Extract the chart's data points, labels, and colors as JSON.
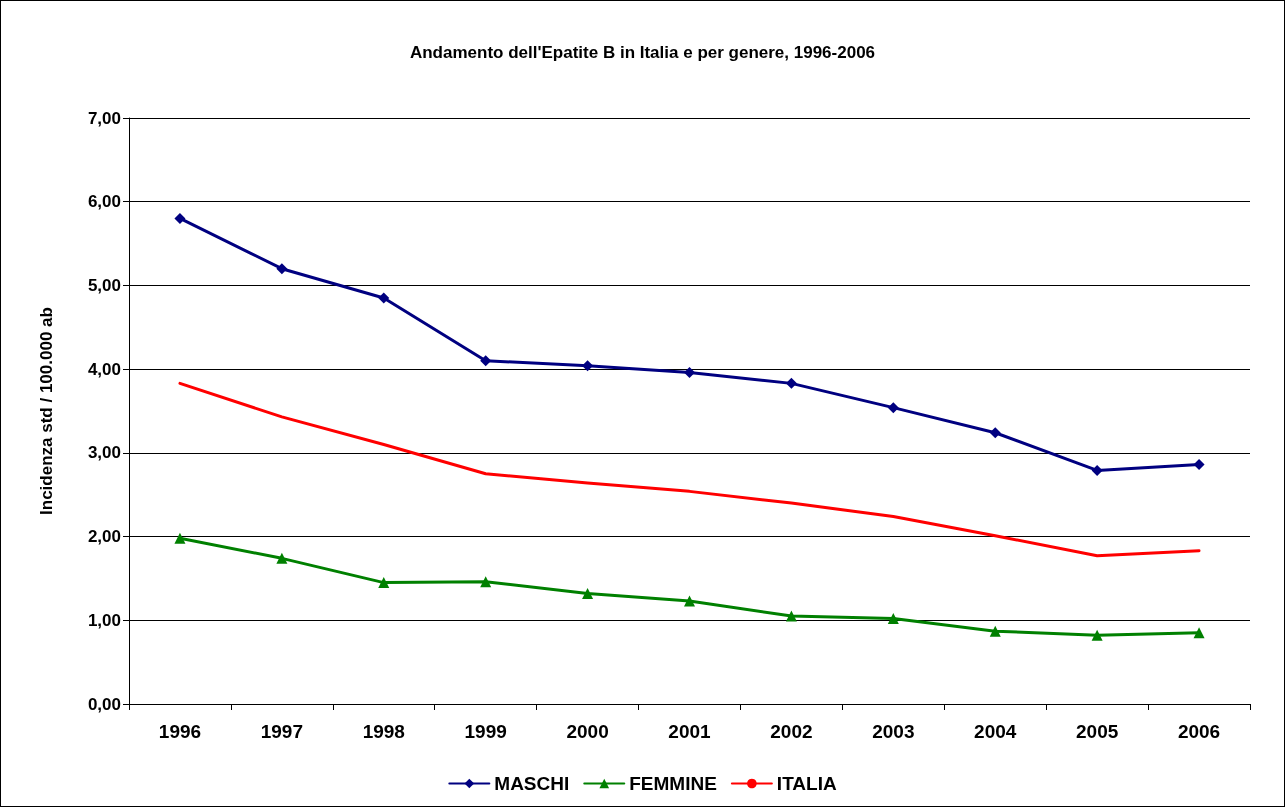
{
  "chart_data": {
    "type": "line",
    "title": "Andamento dell'Epatite B in Italia e per genere, 1996-2006",
    "ylabel": "Incidenza std / 100.000 ab",
    "categories": [
      "1996",
      "1997",
      "1998",
      "1999",
      "2000",
      "2001",
      "2002",
      "2003",
      "2004",
      "2005",
      "2006"
    ],
    "series": [
      {
        "name": "MASCHI",
        "color": "#000080",
        "marker": "diamond",
        "values": [
          5.8,
          5.2,
          4.85,
          4.1,
          4.04,
          3.96,
          3.83,
          3.54,
          3.24,
          2.79,
          2.86
        ]
      },
      {
        "name": "FEMMINE",
        "color": "#008000",
        "marker": "triangle",
        "values": [
          1.98,
          1.74,
          1.45,
          1.46,
          1.32,
          1.23,
          1.05,
          1.02,
          0.87,
          0.82,
          0.85
        ]
      },
      {
        "name": "ITALIA",
        "color": "#ff0000",
        "marker": "none",
        "values": [
          3.83,
          3.43,
          3.1,
          2.75,
          2.64,
          2.54,
          2.4,
          2.24,
          2.01,
          1.77,
          1.83
        ]
      }
    ],
    "ylim": [
      0,
      7
    ],
    "yticks": [
      {
        "value": 0,
        "label": "0,00"
      },
      {
        "value": 1,
        "label": "1,00"
      },
      {
        "value": 2,
        "label": "2,00"
      },
      {
        "value": 3,
        "label": "3,00"
      },
      {
        "value": 4,
        "label": "4,00"
      },
      {
        "value": 5,
        "label": "5,00"
      },
      {
        "value": 6,
        "label": "6,00"
      },
      {
        "value": 7,
        "label": "7,00"
      }
    ],
    "grid": "y",
    "legend": "bottom",
    "line_style": "solid"
  }
}
